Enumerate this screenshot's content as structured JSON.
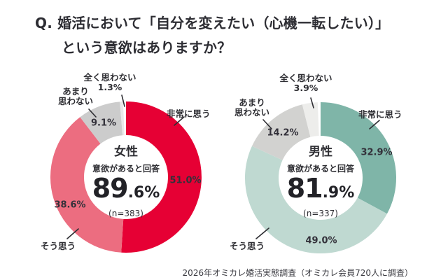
{
  "title": {
    "line1": "Q. 婚活において「自分を変えたい（心機一転したい）」",
    "line2": "という意欲はありますか？"
  },
  "footer": "2026年オミカレ婚活実態調査（オミカレ会員720人に調査）",
  "colors": {
    "text": "#2e2e33",
    "leader_line": "#2e2e33",
    "women_accent": "#e60034",
    "men_accent": "#7fb5a8"
  },
  "chart_data": [
    {
      "type": "pie",
      "group": "女性",
      "center": {
        "group": "女性",
        "subtitle": "意欲があると回答",
        "value": "89.6%",
        "value_int": "89",
        "value_frac": ".6%",
        "n": "(n=383)"
      },
      "segments": [
        {
          "label": "非常に思う",
          "value": 51.0,
          "display": "51.0%",
          "color": "#e60034"
        },
        {
          "label": "そう思う",
          "value": 38.6,
          "display": "38.6%",
          "color": "#ec6d80"
        },
        {
          "label": "あまり思わない",
          "label_lines": [
            "あまり",
            "思わない"
          ],
          "value": 9.1,
          "display": "9.1%",
          "color": "#cccccc"
        },
        {
          "label": "全く思わない",
          "value": 1.3,
          "display": "1.3%",
          "color": "#e9e9e9"
        }
      ]
    },
    {
      "type": "pie",
      "group": "男性",
      "center": {
        "group": "男性",
        "subtitle": "意欲があると回答",
        "value": "81.9%",
        "value_int": "81",
        "value_frac": ".9%",
        "n": "(n=337)"
      },
      "segments": [
        {
          "label": "非常に思う",
          "value": 32.9,
          "display": "32.9%",
          "color": "#7fb5a8"
        },
        {
          "label": "そう思う",
          "value": 49.0,
          "display": "49.0%",
          "color": "#bfd9d1"
        },
        {
          "label": "あまり思わない",
          "label_lines": [
            "あまり",
            "思わない"
          ],
          "value": 14.2,
          "display": "14.2%",
          "color": "#d2d2d0"
        },
        {
          "label": "全く思わない",
          "value": 3.9,
          "display": "3.9%",
          "color": "#ededeb"
        }
      ]
    }
  ]
}
